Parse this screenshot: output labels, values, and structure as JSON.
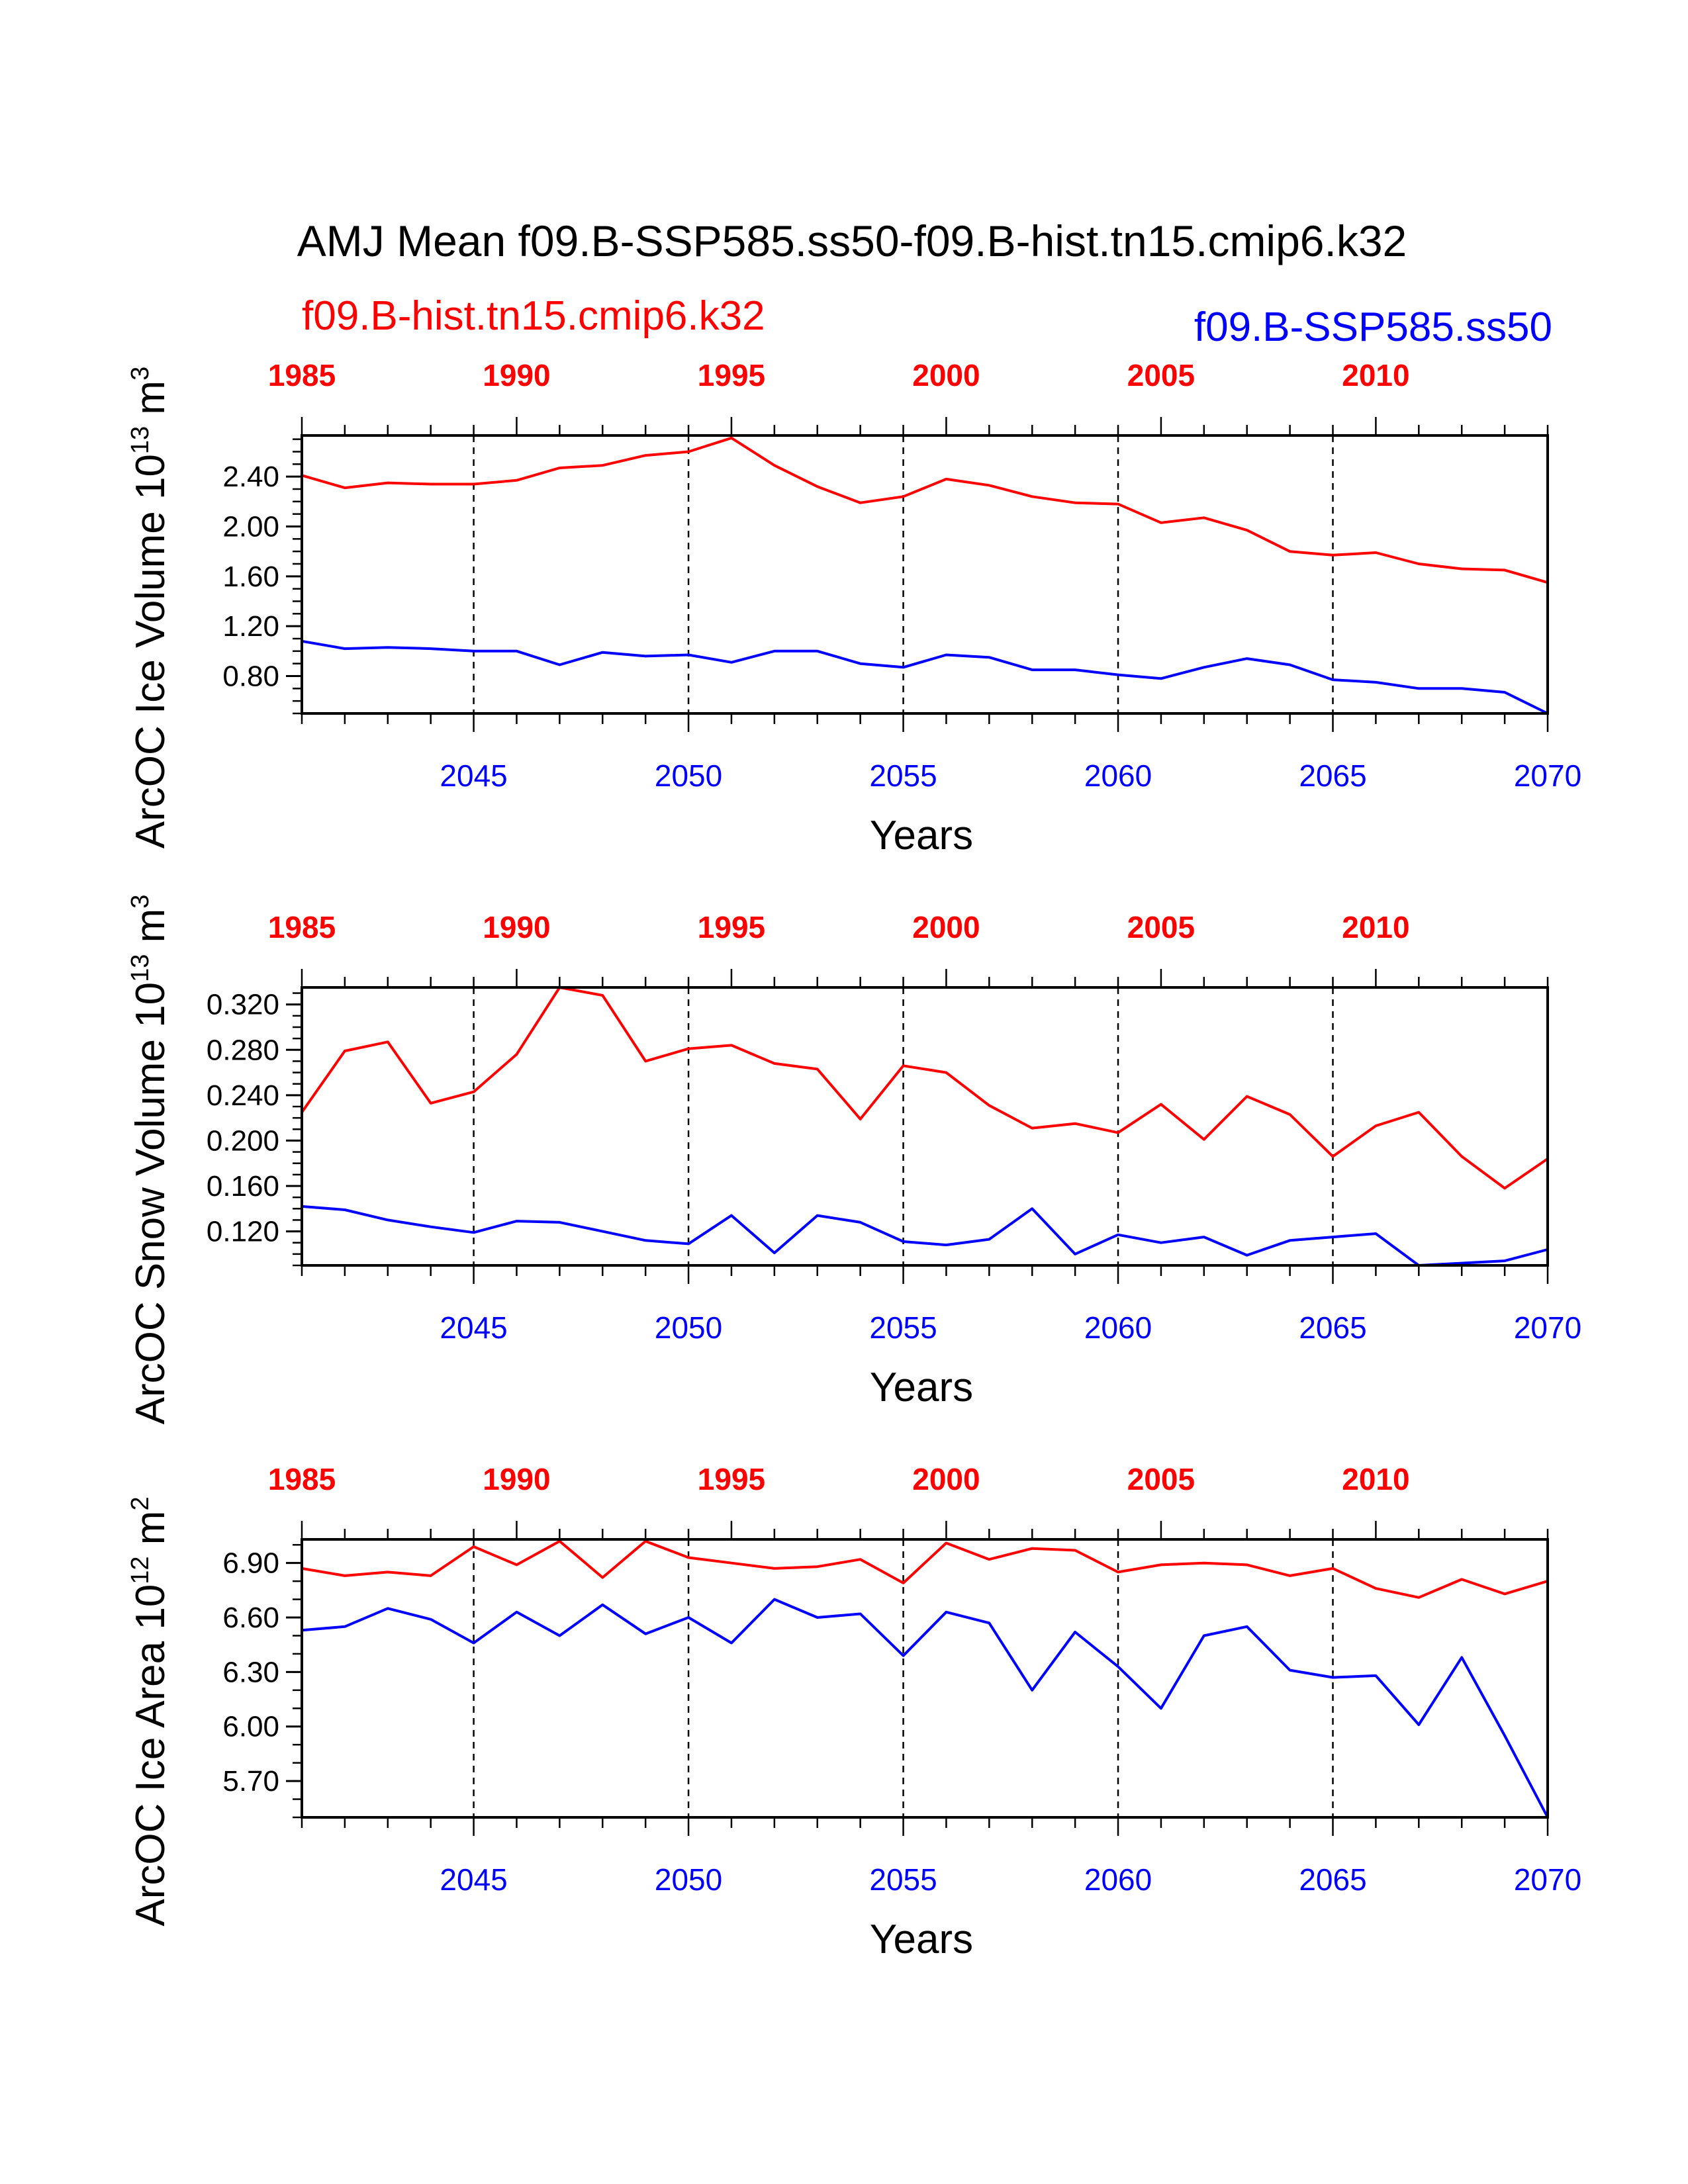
{
  "title": "AMJ Mean f09.B-SSP585.ss50-f09.B-hist.tn15.cmip6.k32",
  "legend": {
    "hist_label": "f09.B-hist.tn15.cmip6.k32",
    "ssp_label": "f09.B-SSP585.ss50",
    "hist_color": "#ff0000",
    "ssp_color": "#0000ff"
  },
  "chart_data": [
    {
      "type": "line",
      "id": "ice-volume",
      "ylabel": "ArcOC Ice Volume 10",
      "ylabel_exp": "13",
      "ylabel_unit": " m",
      "ylabel_unit_exp": "3",
      "xlabel": "Years",
      "bottom_axis": {
        "label_color": "#0000ff",
        "range": [
          2041,
          2070
        ],
        "ticks": [
          "2045",
          "2050",
          "2055",
          "2060",
          "2065",
          "2070"
        ]
      },
      "top_axis": {
        "label_color": "#ff0000",
        "range": [
          1985,
          2014
        ],
        "ticks": [
          "1985",
          "1990",
          "1995",
          "2000",
          "2005",
          "2010"
        ]
      },
      "ylim": [
        0.5,
        2.73
      ],
      "yticks": [
        "0.80",
        "1.20",
        "1.60",
        "2.00",
        "2.40"
      ],
      "ytick_values": [
        0.8,
        1.2,
        1.6,
        2.0,
        2.4
      ],
      "yminor_step": 0.1,
      "grid": "dashed vertical at major x ticks",
      "series": [
        {
          "name": "f09.B-hist.tn15.cmip6.k32",
          "color": "#ff0000",
          "x": [
            1985,
            1986,
            1987,
            1988,
            1989,
            1990,
            1991,
            1992,
            1993,
            1994,
            1995,
            1996,
            1997,
            1998,
            1999,
            2000,
            2001,
            2002,
            2003,
            2004,
            2005,
            2006,
            2007,
            2008,
            2009,
            2010,
            2011,
            2012,
            2013,
            2014
          ],
          "values": [
            2.41,
            2.31,
            2.35,
            2.34,
            2.34,
            2.37,
            2.47,
            2.49,
            2.57,
            2.6,
            2.71,
            2.49,
            2.32,
            2.19,
            2.24,
            2.38,
            2.33,
            2.24,
            2.19,
            2.18,
            2.03,
            2.07,
            1.97,
            1.8,
            1.77,
            1.79,
            1.7,
            1.66,
            1.65,
            1.55
          ]
        },
        {
          "name": "f09.B-SSP585.ss50",
          "color": "#0000ff",
          "x": [
            2041,
            2042,
            2043,
            2044,
            2045,
            2046,
            2047,
            2048,
            2049,
            2050,
            2051,
            2052,
            2053,
            2054,
            2055,
            2056,
            2057,
            2058,
            2059,
            2060,
            2061,
            2062,
            2063,
            2064,
            2065,
            2066,
            2067,
            2068,
            2069,
            2070
          ],
          "values": [
            1.08,
            1.02,
            1.03,
            1.02,
            1.0,
            1.0,
            0.89,
            0.99,
            0.96,
            0.97,
            0.91,
            1.0,
            1.0,
            0.9,
            0.87,
            0.97,
            0.95,
            0.85,
            0.85,
            0.81,
            0.78,
            0.87,
            0.94,
            0.89,
            0.77,
            0.75,
            0.7,
            0.7,
            0.67,
            0.5
          ]
        }
      ]
    },
    {
      "type": "line",
      "id": "snow-volume",
      "ylabel": "ArcOC Snow Volume 10",
      "ylabel_exp": "13",
      "ylabel_unit": " m",
      "ylabel_unit_exp": "3",
      "xlabel": "Years",
      "bottom_axis": {
        "label_color": "#0000ff",
        "range": [
          2041,
          2070
        ],
        "ticks": [
          "2045",
          "2050",
          "2055",
          "2060",
          "2065",
          "2070"
        ]
      },
      "top_axis": {
        "label_color": "#ff0000",
        "range": [
          1985,
          2014
        ],
        "ticks": [
          "1985",
          "1990",
          "1995",
          "2000",
          "2005",
          "2010"
        ]
      },
      "ylim": [
        0.09,
        0.335
      ],
      "yticks": [
        "0.120",
        "0.160",
        "0.200",
        "0.240",
        "0.280",
        "0.320"
      ],
      "ytick_values": [
        0.12,
        0.16,
        0.2,
        0.24,
        0.28,
        0.32
      ],
      "yminor_step": 0.01,
      "grid": "dashed vertical at major x ticks",
      "series": [
        {
          "name": "f09.B-hist.tn15.cmip6.k32",
          "color": "#ff0000",
          "x": [
            1985,
            1986,
            1987,
            1988,
            1989,
            1990,
            1991,
            1992,
            1993,
            1994,
            1995,
            1996,
            1997,
            1998,
            1999,
            2000,
            2001,
            2002,
            2003,
            2004,
            2005,
            2006,
            2007,
            2008,
            2009,
            2010,
            2011,
            2012,
            2013,
            2014
          ],
          "values": [
            0.225,
            0.279,
            0.287,
            0.233,
            0.243,
            0.276,
            0.335,
            0.328,
            0.27,
            0.281,
            0.284,
            0.268,
            0.263,
            0.219,
            0.266,
            0.26,
            0.231,
            0.211,
            0.215,
            0.207,
            0.232,
            0.201,
            0.239,
            0.223,
            0.186,
            0.213,
            0.225,
            0.186,
            0.158,
            0.184
          ]
        },
        {
          "name": "f09.B-SSP585.ss50",
          "color": "#0000ff",
          "x": [
            2041,
            2042,
            2043,
            2044,
            2045,
            2046,
            2047,
            2048,
            2049,
            2050,
            2051,
            2052,
            2053,
            2054,
            2055,
            2056,
            2057,
            2058,
            2059,
            2060,
            2061,
            2062,
            2063,
            2064,
            2065,
            2066,
            2067,
            2068,
            2069,
            2070
          ],
          "values": [
            0.142,
            0.139,
            0.13,
            0.124,
            0.119,
            0.129,
            0.128,
            0.12,
            0.112,
            0.109,
            0.134,
            0.101,
            0.134,
            0.128,
            0.111,
            0.108,
            0.113,
            0.14,
            0.1,
            0.117,
            0.11,
            0.115,
            0.099,
            0.112,
            0.115,
            0.118,
            0.09,
            0.092,
            0.094,
            0.104
          ]
        }
      ]
    },
    {
      "type": "line",
      "id": "ice-area",
      "ylabel": "ArcOC Ice Area 10",
      "ylabel_exp": "12",
      "ylabel_unit": " m",
      "ylabel_unit_exp": "2",
      "xlabel": "Years",
      "bottom_axis": {
        "label_color": "#0000ff",
        "range": [
          2041,
          2070
        ],
        "ticks": [
          "2045",
          "2050",
          "2055",
          "2060",
          "2065",
          "2070"
        ]
      },
      "top_axis": {
        "label_color": "#ff0000",
        "range": [
          1985,
          2014
        ],
        "ticks": [
          "1985",
          "1990",
          "1995",
          "2000",
          "2005",
          "2010"
        ]
      },
      "ylim": [
        5.5,
        7.03
      ],
      "yticks": [
        "5.70",
        "6.00",
        "6.30",
        "6.60",
        "6.90"
      ],
      "ytick_values": [
        5.7,
        6.0,
        6.3,
        6.6,
        6.9
      ],
      "yminor_step": 0.1,
      "grid": "dashed vertical at major x ticks",
      "series": [
        {
          "name": "f09.B-hist.tn15.cmip6.k32",
          "color": "#ff0000",
          "x": [
            1985,
            1986,
            1987,
            1988,
            1989,
            1990,
            1991,
            1992,
            1993,
            1994,
            1995,
            1996,
            1997,
            1998,
            1999,
            2000,
            2001,
            2002,
            2003,
            2004,
            2005,
            2006,
            2007,
            2008,
            2009,
            2010,
            2011,
            2012,
            2013,
            2014
          ],
          "values": [
            6.87,
            6.83,
            6.85,
            6.83,
            6.99,
            6.89,
            7.02,
            6.82,
            7.02,
            6.93,
            6.9,
            6.87,
            6.88,
            6.92,
            6.79,
            7.01,
            6.92,
            6.98,
            6.97,
            6.85,
            6.89,
            6.9,
            6.89,
            6.83,
            6.87,
            6.76,
            6.71,
            6.81,
            6.73,
            6.8
          ]
        },
        {
          "name": "f09.B-SSP585.ss50",
          "color": "#0000ff",
          "x": [
            2041,
            2042,
            2043,
            2044,
            2045,
            2046,
            2047,
            2048,
            2049,
            2050,
            2051,
            2052,
            2053,
            2054,
            2055,
            2056,
            2057,
            2058,
            2059,
            2060,
            2061,
            2062,
            2063,
            2064,
            2065,
            2066,
            2067,
            2068,
            2069,
            2070
          ],
          "values": [
            6.53,
            6.55,
            6.65,
            6.59,
            6.46,
            6.63,
            6.5,
            6.67,
            6.51,
            6.6,
            6.46,
            6.7,
            6.6,
            6.62,
            6.39,
            6.63,
            6.57,
            6.2,
            6.52,
            6.33,
            6.1,
            6.5,
            6.55,
            6.31,
            6.27,
            6.28,
            6.01,
            6.38,
            5.95,
            5.5
          ]
        }
      ]
    }
  ]
}
